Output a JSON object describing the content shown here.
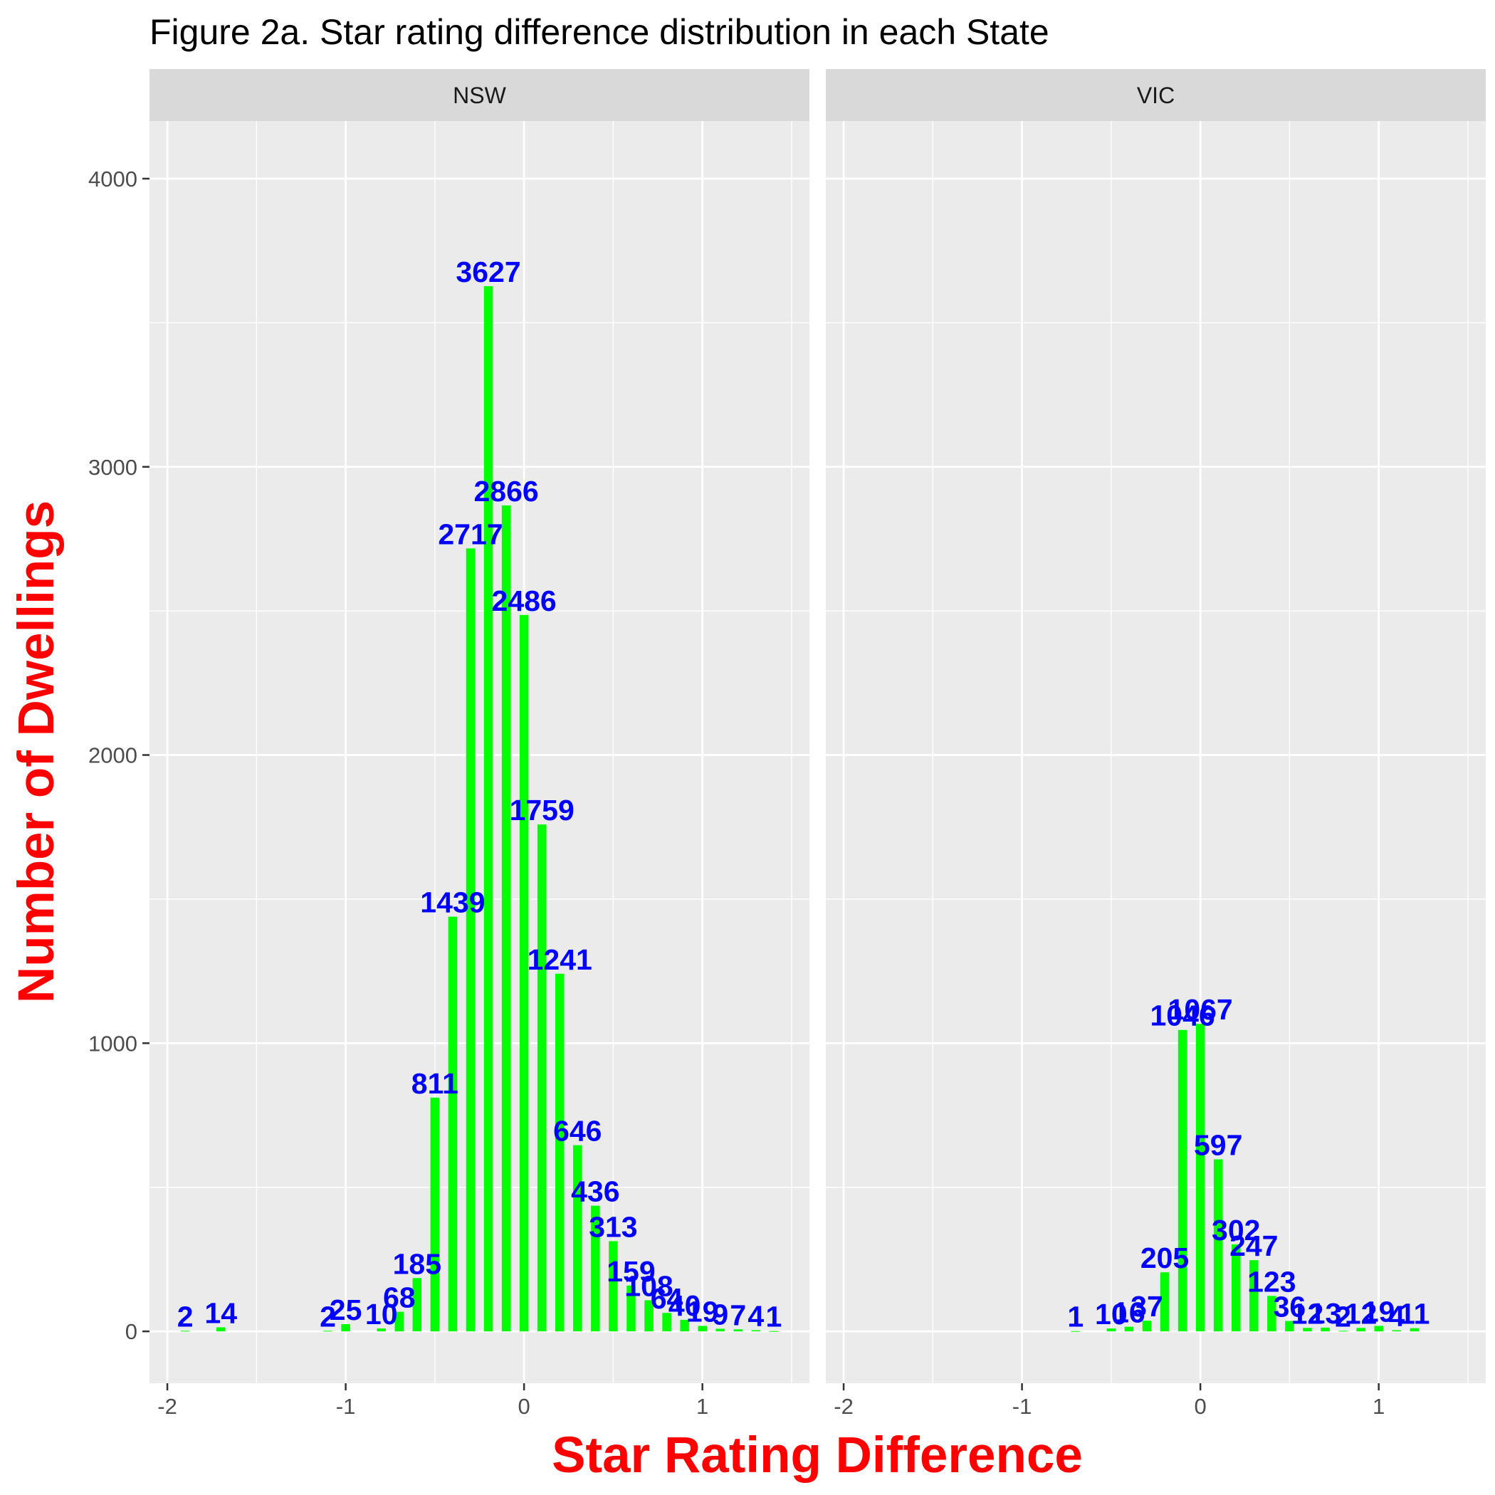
{
  "chart_data": {
    "type": "bar",
    "title": "Figure 2a. Star rating difference distribution in each State",
    "xlabel": "Star Rating Difference",
    "ylabel": "Number of Dwellings",
    "xlim": [
      -2.1,
      1.6
    ],
    "ylim": [
      -180,
      4200
    ],
    "x_ticks": [
      -2,
      -1,
      0,
      1
    ],
    "x_tick_labels": [
      "-2",
      "-1",
      "0",
      "1"
    ],
    "y_ticks": [
      0,
      1000,
      2000,
      3000,
      4000
    ],
    "y_tick_labels": [
      "0",
      "1000",
      "2000",
      "3000",
      "4000"
    ],
    "grid": true,
    "colors": {
      "bar": "#00ff00",
      "label": "#0000ff",
      "axis_title": "#ff0000",
      "panel_bg": "#ebebeb",
      "strip_bg": "#d9d9d9",
      "grid": "#ffffff"
    },
    "panels": [
      {
        "name": "NSW",
        "bars": [
          {
            "x": -1.9,
            "y": 2,
            "label": "2"
          },
          {
            "x": -1.7,
            "y": 14,
            "label": "14"
          },
          {
            "x": -1.1,
            "y": 2,
            "label": "2"
          },
          {
            "x": -1.0,
            "y": 25,
            "label": "25"
          },
          {
            "x": -0.8,
            "y": 10,
            "label": "10"
          },
          {
            "x": -0.7,
            "y": 68,
            "label": "68"
          },
          {
            "x": -0.6,
            "y": 185,
            "label": "185"
          },
          {
            "x": -0.5,
            "y": 811,
            "label": "811"
          },
          {
            "x": -0.4,
            "y": 1439,
            "label": "1439"
          },
          {
            "x": -0.3,
            "y": 2717,
            "label": "2717"
          },
          {
            "x": -0.2,
            "y": 3627,
            "label": "3627"
          },
          {
            "x": -0.1,
            "y": 2866,
            "label": "2866"
          },
          {
            "x": 0.0,
            "y": 2486,
            "label": "2486"
          },
          {
            "x": 0.1,
            "y": 1759,
            "label": "1759"
          },
          {
            "x": 0.2,
            "y": 1241,
            "label": "1241"
          },
          {
            "x": 0.3,
            "y": 646,
            "label": "646"
          },
          {
            "x": 0.4,
            "y": 436,
            "label": "436"
          },
          {
            "x": 0.5,
            "y": 313,
            "label": "313"
          },
          {
            "x": 0.6,
            "y": 159,
            "label": "159"
          },
          {
            "x": 0.7,
            "y": 108,
            "label": "108"
          },
          {
            "x": 0.8,
            "y": 64,
            "label": "64"
          },
          {
            "x": 0.9,
            "y": 40,
            "label": "40"
          },
          {
            "x": 1.0,
            "y": 19,
            "label": "19"
          },
          {
            "x": 1.1,
            "y": 9,
            "label": "9"
          },
          {
            "x": 1.2,
            "y": 7,
            "label": "7"
          },
          {
            "x": 1.3,
            "y": 4,
            "label": "4"
          },
          {
            "x": 1.4,
            "y": 1,
            "label": "1"
          }
        ]
      },
      {
        "name": "VIC",
        "bars": [
          {
            "x": -0.7,
            "y": 1,
            "label": "1"
          },
          {
            "x": -0.5,
            "y": 10,
            "label": "10"
          },
          {
            "x": -0.4,
            "y": 16,
            "label": "16"
          },
          {
            "x": -0.3,
            "y": 37,
            "label": "37"
          },
          {
            "x": -0.2,
            "y": 205,
            "label": "205"
          },
          {
            "x": -0.1,
            "y": 1046,
            "label": "1046"
          },
          {
            "x": 0.0,
            "y": 1067,
            "label": "1067"
          },
          {
            "x": 0.1,
            "y": 597,
            "label": "597"
          },
          {
            "x": 0.2,
            "y": 302,
            "label": "302"
          },
          {
            "x": 0.3,
            "y": 247,
            "label": "247"
          },
          {
            "x": 0.4,
            "y": 123,
            "label": "123"
          },
          {
            "x": 0.5,
            "y": 36,
            "label": "36"
          },
          {
            "x": 0.6,
            "y": 12,
            "label": "12"
          },
          {
            "x": 0.7,
            "y": 13,
            "label": "13"
          },
          {
            "x": 0.8,
            "y": 2,
            "label": "2"
          },
          {
            "x": 0.9,
            "y": 12,
            "label": "12"
          },
          {
            "x": 1.0,
            "y": 19,
            "label": "19"
          },
          {
            "x": 1.1,
            "y": 4,
            "label": "4"
          },
          {
            "x": 1.2,
            "y": 11,
            "label": "11"
          }
        ]
      }
    ]
  }
}
